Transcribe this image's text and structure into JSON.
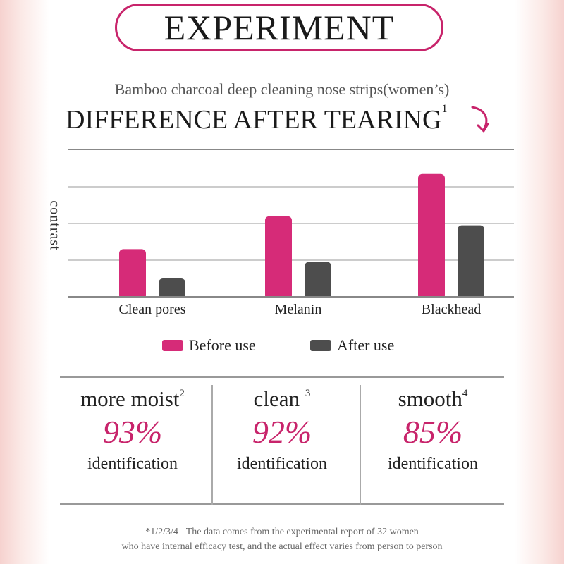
{
  "header": {
    "title": "EXPERIMENT",
    "subtitle": "Bamboo charcoal deep cleaning nose strips(women’s)",
    "headline": "DIFFERENCE AFTER TEARING",
    "headline_sup": "1",
    "accent_color": "#c8246b"
  },
  "chart_data": {
    "type": "bar",
    "categories": [
      "Clean pores",
      "Melanin",
      "Blackhead"
    ],
    "ylabel": "contrast",
    "ylim": [
      0,
      4
    ],
    "grid": true,
    "legend_position": "bottom-center",
    "series": [
      {
        "name": "Before use",
        "color": "#d62b78",
        "values": [
          1.3,
          2.2,
          3.35
        ]
      },
      {
        "name": "After use",
        "color": "#4d4d4d",
        "values": [
          0.5,
          0.95,
          1.95
        ]
      }
    ]
  },
  "stats": [
    {
      "name": "more moist",
      "sup": "2",
      "percent": "93%",
      "label": "identification"
    },
    {
      "name": "clean",
      "sup": "3",
      "percent": "92%",
      "label": "identification"
    },
    {
      "name": "smooth",
      "sup": "4",
      "percent": "85%",
      "label": "identification"
    }
  ],
  "footnote": {
    "line1": "*1/2/3/4\u0000The data comes from the experimental report of 32 women",
    "line2": "who have internal efficacy test, and the actual effect varies from person to person"
  }
}
